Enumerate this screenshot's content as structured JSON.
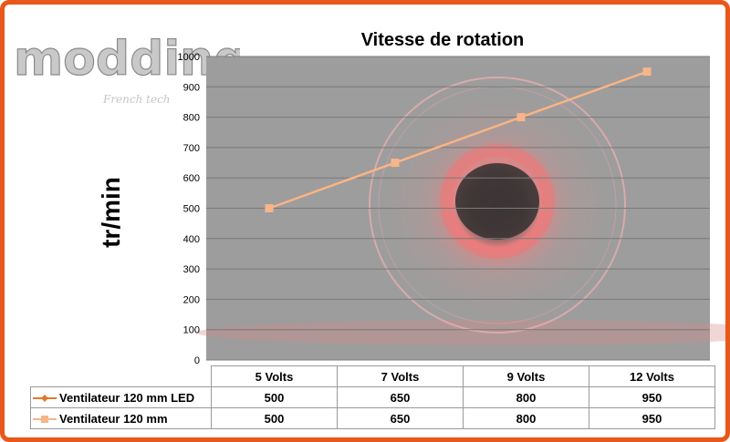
{
  "logo": {
    "text": "modding.fr",
    "tagline": "French tech"
  },
  "colors": {
    "frame": "#e8581a",
    "series1": "#e07a2a",
    "series2": "#f6b58a",
    "plot_bg": "#9d9d9d"
  },
  "chart_data": {
    "type": "line",
    "title": "Vitesse de rotation",
    "ylabel": "tr/min",
    "xlabel": "",
    "categories": [
      "5 Volts",
      "7 Volts",
      "9 Volts",
      "12 Volts"
    ],
    "series": [
      {
        "name": "Ventilateur 120 mm LED",
        "values": [
          500,
          650,
          800,
          950
        ],
        "marker": "diamond"
      },
      {
        "name": "Ventilateur 120 mm",
        "values": [
          500,
          650,
          800,
          950
        ],
        "marker": "square"
      }
    ],
    "ylim": [
      0,
      1000
    ],
    "yticks": [
      "0",
      "100",
      "200",
      "300",
      "400",
      "500",
      "600",
      "700",
      "800",
      "900",
      "1000"
    ],
    "grid": true,
    "legend": "data-table",
    "table": [
      [
        "500",
        "650",
        "800",
        "950"
      ],
      [
        "500",
        "650",
        "800",
        "950"
      ]
    ]
  }
}
